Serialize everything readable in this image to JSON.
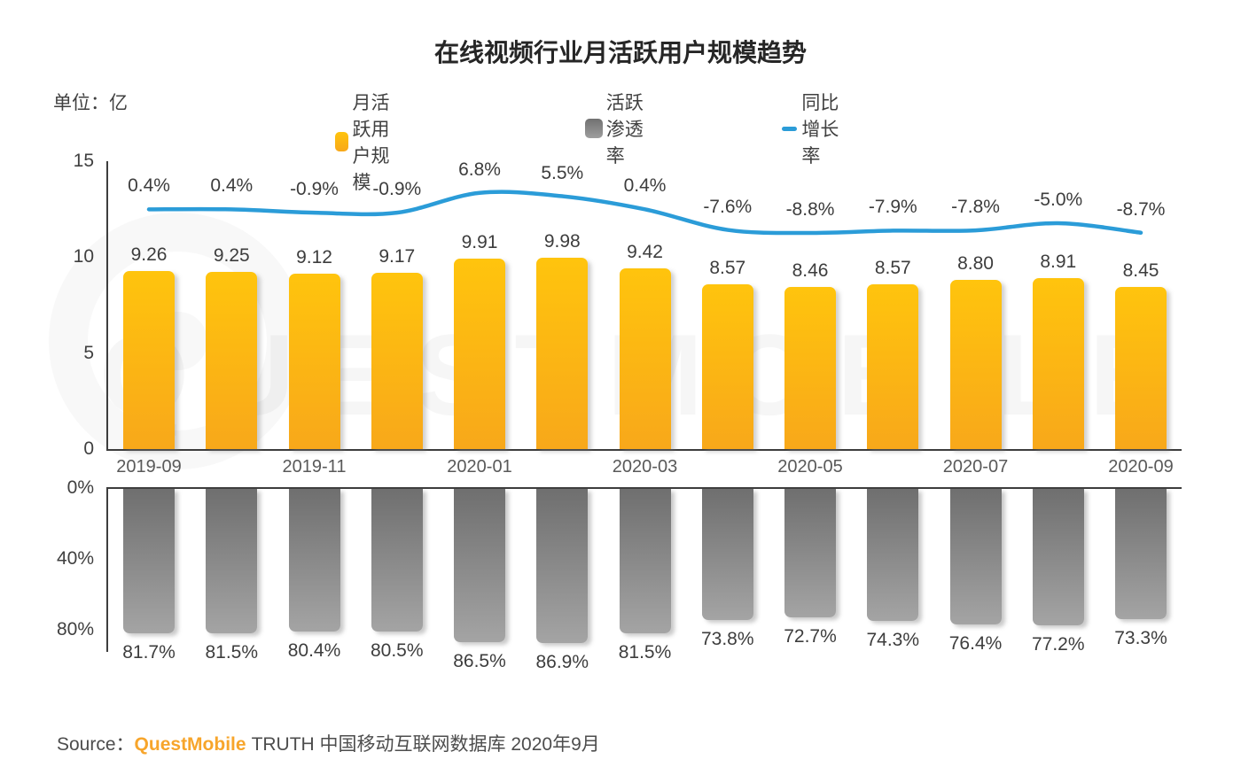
{
  "title": "在线视频行业月活跃用户规模趋势",
  "unit_label": "单位：亿",
  "legend": [
    {
      "label": "月活跃用户规模",
      "type": "bar",
      "color": "#FBB116"
    },
    {
      "label": "活跃渗透率",
      "type": "bar",
      "color": "#8C8C8C"
    },
    {
      "label": "同比增长率",
      "type": "line",
      "color": "#2B9CD8"
    }
  ],
  "watermark": {
    "text": "QUESTMOBILE"
  },
  "source": {
    "prefix": "Source：",
    "brand": "QuestMobile",
    "suffix": "TRUTH 中国移动互联网数据库 2020年9月"
  },
  "colors": {
    "bar_top": "#FFC40D",
    "bar_bottom": "#F8A81A",
    "gray_top": "#6F6F6F",
    "gray_bottom": "#A4A4A4",
    "line": "#2B9CD8",
    "axis": "#3d3d3d",
    "brand_orange": "#F7A52B"
  },
  "chart_data": [
    {
      "type": "bar",
      "panel": "top",
      "title": "月活跃用户规模 (亿) 与 同比增长率",
      "ylabel": "亿",
      "yticks": [
        15,
        10,
        5,
        0
      ],
      "ylim": [
        0,
        15
      ],
      "x_tick_labels": [
        "2019-09",
        "2019-11",
        "2020-01",
        "2020-03",
        "2020-05",
        "2020-07",
        "2020-09"
      ],
      "grid": false,
      "legend_position": "top",
      "series": [
        {
          "name": "月活跃用户规模",
          "type": "bar",
          "values": [
            9.26,
            9.25,
            9.12,
            9.17,
            9.91,
            9.98,
            9.42,
            8.57,
            8.46,
            8.57,
            8.8,
            8.91,
            8.45
          ]
        },
        {
          "name": "同比增长率",
          "type": "line",
          "unit": "%",
          "values": [
            0.4,
            0.4,
            -0.9,
            -0.9,
            6.8,
            5.5,
            0.4,
            -7.6,
            -8.8,
            -7.9,
            -7.8,
            -5.0,
            -8.7
          ]
        }
      ]
    },
    {
      "type": "bar",
      "panel": "bottom",
      "orientation": "inverted",
      "title": "活跃渗透率",
      "yticks": [
        "0%",
        "40%",
        "80%"
      ],
      "ylim": [
        0,
        80
      ],
      "grid": false,
      "series": [
        {
          "name": "活跃渗透率",
          "type": "bar",
          "unit": "%",
          "values": [
            81.7,
            81.5,
            80.4,
            80.5,
            86.5,
            86.9,
            81.5,
            73.8,
            72.7,
            74.3,
            76.4,
            77.2,
            73.3
          ]
        }
      ]
    }
  ]
}
